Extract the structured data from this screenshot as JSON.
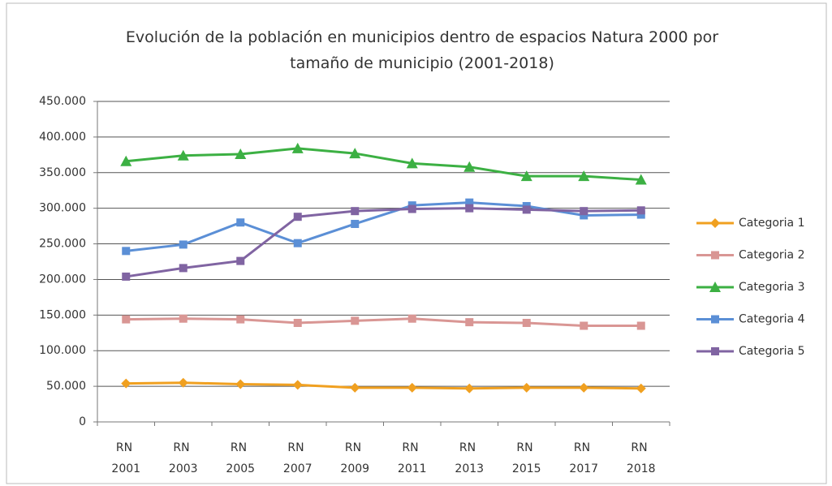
{
  "chart_data": {
    "type": "line",
    "title": "Evolución de la población en municipios dentro de espacios Natura 2000 por tamaño de municipio (2001-2018)",
    "categories": [
      "RN 2001",
      "RN 2003",
      "RN 2005",
      "RN 2007",
      "RN 2009",
      "RN 2011",
      "RN 2013",
      "RN 2015",
      "RN 2017",
      "RN 2018"
    ],
    "series": [
      {
        "name": "Categoria 1",
        "color": "#f0a020",
        "marker": "diamond",
        "values": [
          54000,
          55000,
          53000,
          52000,
          48000,
          48000,
          47000,
          48000,
          48000,
          47000
        ]
      },
      {
        "name": "Categoria 2",
        "color": "#d99694",
        "marker": "square",
        "values": [
          144000,
          145000,
          144000,
          139000,
          142000,
          145000,
          140000,
          139000,
          135000,
          135000
        ]
      },
      {
        "name": "Categoria 3",
        "color": "#3cb043",
        "marker": "triangle",
        "values": [
          366000,
          374000,
          376000,
          384000,
          377000,
          363000,
          358000,
          345000,
          345000,
          340000
        ]
      },
      {
        "name": "Categoria 4",
        "color": "#5b8fd6",
        "marker": "square",
        "values": [
          240000,
          249000,
          280000,
          251000,
          278000,
          304000,
          308000,
          303000,
          290000,
          291000
        ]
      },
      {
        "name": "Categoria 5",
        "color": "#8064a2",
        "marker": "square",
        "values": [
          204000,
          216000,
          226000,
          288000,
          296000,
          299000,
          300000,
          298000,
          296000,
          297000
        ]
      }
    ],
    "ylim": [
      0,
      450000
    ],
    "yticks": [
      0,
      {
        "value": 50000,
        "label": "50.000"
      },
      {
        "value": 100000,
        "label": "100.000"
      },
      {
        "value": 150000,
        "label": "150.000"
      },
      {
        "value": 200000,
        "label": "200.000"
      },
      {
        "value": 250000,
        "label": "250.000"
      },
      {
        "value": 300000,
        "label": "300.000"
      },
      {
        "value": 350000,
        "label": "350.000"
      },
      {
        "value": 400000,
        "label": "400.000"
      },
      {
        "value": 450000,
        "label": "450.000"
      }
    ],
    "grid": true,
    "legend": "right"
  }
}
